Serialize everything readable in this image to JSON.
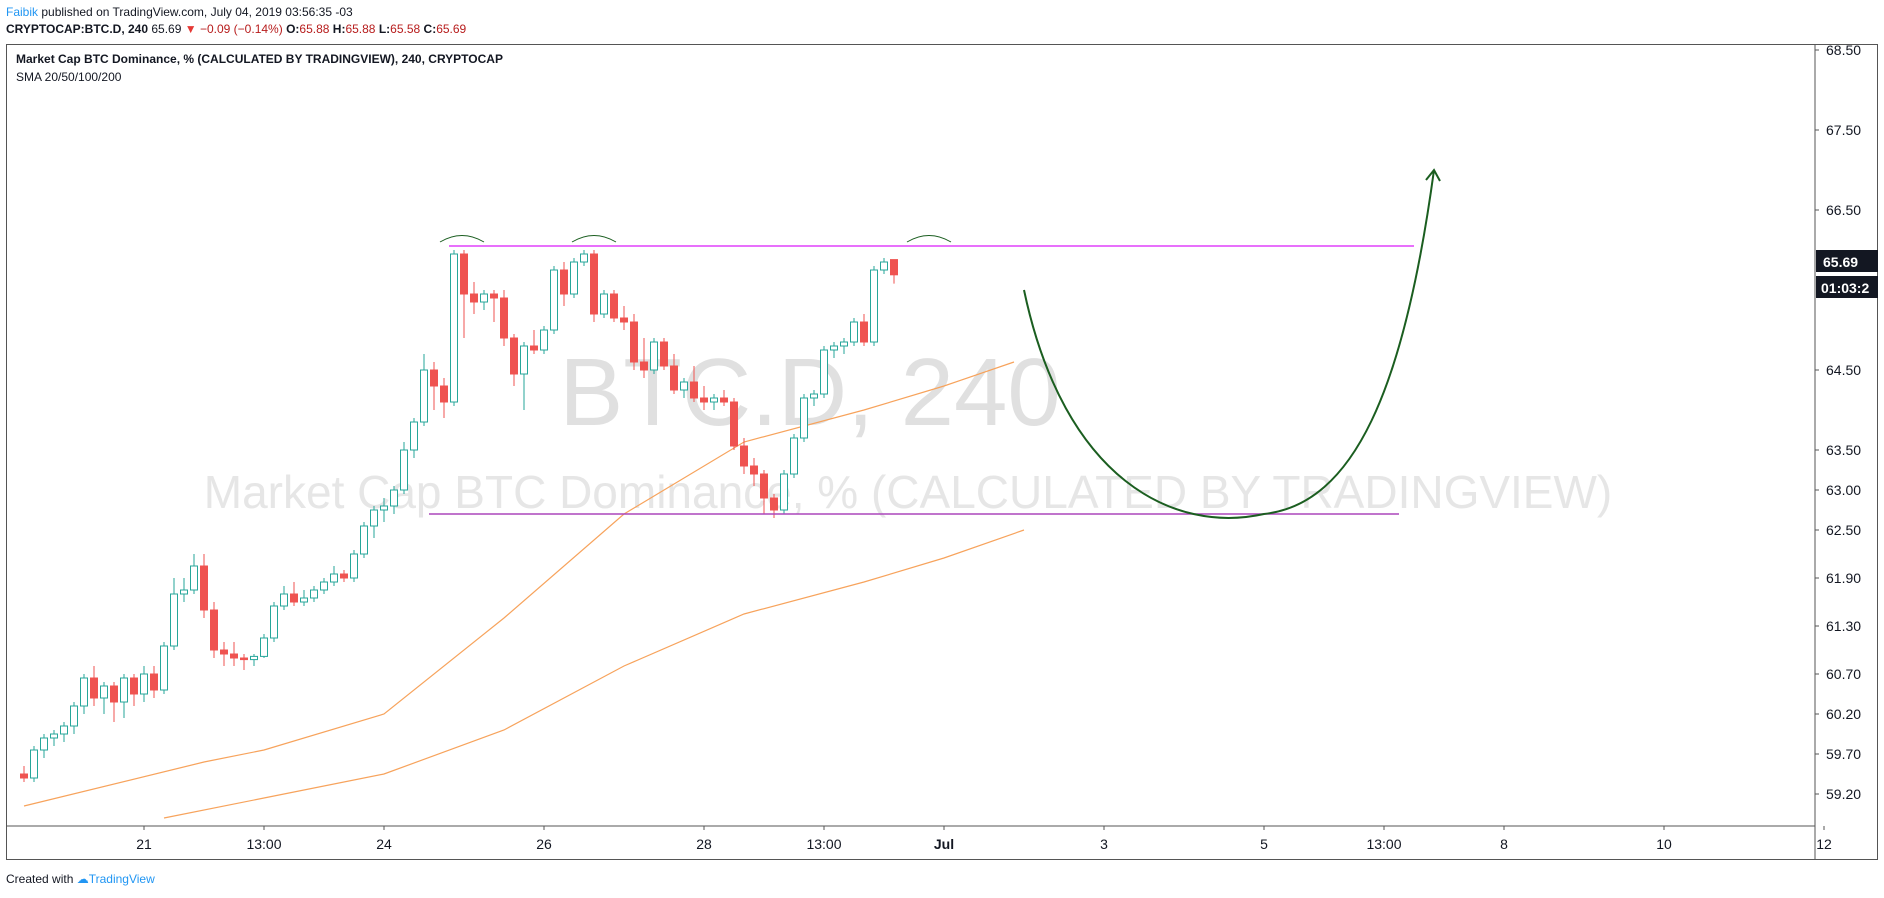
{
  "header": {
    "author": "Faibik",
    "published": "published on TradingView.com, July 04, 2019 03:56:35 -03",
    "symbol": "CRYPTOCAP:BTC.D, 240",
    "last": "65.69",
    "change": "−0.09 (−0.14%)",
    "o_label": "O:",
    "o": "65.88",
    "h_label": "H:",
    "h": "65.88",
    "l_label": "L:",
    "l": "65.58",
    "c_label": "C:",
    "c": "65.69"
  },
  "chart_title": "Market Cap BTC Dominance, % (CALCULATED BY TRADINGVIEW), 240, CRYPTOCAP",
  "indicator": "SMA 20/50/100/200",
  "watermark": {
    "symbol": "BTC.D, 240",
    "name": "Market Cap BTC Dominance, % (CALCULATED BY TRADINGVIEW)"
  },
  "price_badge": "65.69",
  "countdown_badge": "01:03:2",
  "footer": {
    "created": "Created with",
    "brand": "TradingView"
  },
  "colors": {
    "up": "#26a69a",
    "down": "#ef5350",
    "sma": "#f7a35c",
    "resistance": "#e040fb",
    "support": "#ab47bc",
    "projection": "#1b5e20"
  },
  "chart_data": {
    "type": "candlestick",
    "y_axis": {
      "ticks": [
        68.5,
        67.5,
        66.5,
        65.69,
        64.5,
        63.5,
        63.0,
        62.5,
        61.9,
        61.3,
        60.7,
        60.2,
        59.7,
        59.2
      ]
    },
    "x_axis": {
      "ticks": [
        "21",
        "13:00",
        "24",
        "26",
        "28",
        "13:00",
        "Jul",
        "3",
        "5",
        "13:00",
        "8",
        "10",
        "12"
      ],
      "tick_index": [
        12,
        24,
        36,
        52,
        68,
        80,
        92,
        108,
        124,
        136,
        148,
        164,
        180
      ]
    },
    "candles": [
      [
        59.45,
        59.55,
        59.35,
        59.4
      ],
      [
        59.4,
        59.8,
        59.35,
        59.75
      ],
      [
        59.75,
        59.95,
        59.65,
        59.9
      ],
      [
        59.9,
        60.0,
        59.8,
        59.95
      ],
      [
        59.95,
        60.1,
        59.85,
        60.05
      ],
      [
        60.05,
        60.35,
        59.95,
        60.3
      ],
      [
        60.3,
        60.7,
        60.2,
        60.65
      ],
      [
        60.65,
        60.8,
        60.3,
        60.4
      ],
      [
        60.4,
        60.6,
        60.2,
        60.55
      ],
      [
        60.55,
        60.6,
        60.1,
        60.35
      ],
      [
        60.35,
        60.7,
        60.15,
        60.65
      ],
      [
        60.65,
        60.7,
        60.3,
        60.45
      ],
      [
        60.45,
        60.8,
        60.35,
        60.7
      ],
      [
        60.7,
        60.8,
        60.4,
        60.5
      ],
      [
        60.5,
        61.1,
        60.45,
        61.05
      ],
      [
        61.05,
        61.9,
        61.0,
        61.7
      ],
      [
        61.7,
        61.9,
        61.6,
        61.75
      ],
      [
        61.75,
        62.2,
        61.7,
        62.05
      ],
      [
        62.05,
        62.2,
        61.4,
        61.5
      ],
      [
        61.5,
        61.6,
        60.9,
        61.0
      ],
      [
        61.0,
        61.1,
        60.8,
        60.95
      ],
      [
        60.95,
        61.1,
        60.8,
        60.9
      ],
      [
        60.9,
        60.95,
        60.75,
        60.88
      ],
      [
        60.88,
        60.95,
        60.8,
        60.92
      ],
      [
        60.92,
        61.2,
        60.9,
        61.15
      ],
      [
        61.15,
        61.6,
        61.1,
        61.55
      ],
      [
        61.55,
        61.8,
        61.5,
        61.7
      ],
      [
        61.7,
        61.85,
        61.55,
        61.6
      ],
      [
        61.6,
        61.75,
        61.55,
        61.65
      ],
      [
        61.65,
        61.8,
        61.6,
        61.75
      ],
      [
        61.75,
        61.9,
        61.7,
        61.85
      ],
      [
        61.85,
        62.05,
        61.8,
        61.95
      ],
      [
        61.95,
        62.0,
        61.85,
        61.9
      ],
      [
        61.9,
        62.25,
        61.85,
        62.2
      ],
      [
        62.2,
        62.6,
        62.15,
        62.55
      ],
      [
        62.55,
        62.8,
        62.4,
        62.75
      ],
      [
        62.75,
        62.9,
        62.6,
        62.8
      ],
      [
        62.8,
        63.05,
        62.7,
        63.0
      ],
      [
        63.0,
        63.6,
        62.95,
        63.5
      ],
      [
        63.5,
        63.9,
        63.4,
        63.85
      ],
      [
        63.85,
        64.7,
        63.8,
        64.5
      ],
      [
        64.5,
        64.6,
        64.0,
        64.3
      ],
      [
        64.3,
        64.4,
        63.9,
        64.1
      ],
      [
        64.1,
        66.0,
        64.05,
        65.95
      ],
      [
        65.95,
        66.0,
        64.9,
        65.45
      ],
      [
        65.45,
        65.6,
        65.2,
        65.35
      ],
      [
        65.35,
        65.5,
        65.25,
        65.45
      ],
      [
        65.45,
        65.5,
        65.1,
        65.4
      ],
      [
        65.4,
        65.5,
        64.8,
        64.9
      ],
      [
        64.9,
        64.95,
        64.3,
        64.45
      ],
      [
        64.45,
        64.85,
        64.0,
        64.8
      ],
      [
        64.8,
        65.0,
        64.7,
        64.75
      ],
      [
        64.75,
        65.05,
        64.7,
        65.0
      ],
      [
        65.0,
        65.8,
        64.95,
        65.75
      ],
      [
        65.75,
        65.85,
        65.3,
        65.45
      ],
      [
        65.45,
        65.9,
        65.4,
        65.85
      ],
      [
        65.85,
        66.0,
        65.8,
        65.95
      ],
      [
        65.95,
        66.0,
        65.1,
        65.2
      ],
      [
        65.2,
        65.5,
        65.15,
        65.45
      ],
      [
        65.45,
        65.5,
        65.1,
        65.15
      ],
      [
        65.15,
        65.3,
        65.0,
        65.1
      ],
      [
        65.1,
        65.2,
        64.5,
        64.6
      ],
      [
        64.6,
        64.9,
        64.4,
        64.5
      ],
      [
        64.5,
        64.9,
        64.45,
        64.85
      ],
      [
        64.85,
        64.9,
        64.5,
        64.55
      ],
      [
        64.55,
        64.7,
        64.2,
        64.25
      ],
      [
        64.25,
        64.4,
        64.15,
        64.35
      ],
      [
        64.35,
        64.55,
        64.1,
        64.15
      ],
      [
        64.15,
        64.3,
        64.0,
        64.1
      ],
      [
        64.1,
        64.2,
        64.0,
        64.15
      ],
      [
        64.15,
        64.25,
        64.05,
        64.1
      ],
      [
        64.1,
        64.15,
        63.5,
        63.55
      ],
      [
        63.55,
        63.65,
        63.2,
        63.3
      ],
      [
        63.3,
        63.4,
        63.05,
        63.2
      ],
      [
        63.2,
        63.25,
        62.7,
        62.9
      ],
      [
        62.9,
        62.95,
        62.65,
        62.75
      ],
      [
        62.75,
        63.25,
        62.7,
        63.2
      ],
      [
        63.2,
        63.7,
        63.15,
        63.65
      ],
      [
        63.65,
        64.2,
        63.6,
        64.15
      ],
      [
        64.15,
        64.25,
        64.05,
        64.2
      ],
      [
        64.2,
        64.8,
        64.15,
        64.75
      ],
      [
        64.75,
        64.85,
        64.65,
        64.8
      ],
      [
        64.8,
        64.9,
        64.7,
        64.85
      ],
      [
        64.85,
        65.15,
        64.8,
        65.1
      ],
      [
        65.1,
        65.2,
        64.8,
        64.85
      ],
      [
        64.85,
        65.8,
        64.8,
        65.75
      ],
      [
        65.75,
        65.9,
        65.7,
        65.85
      ],
      [
        65.88,
        65.88,
        65.58,
        65.69
      ]
    ],
    "sma_fast": [
      [
        0,
        59.05
      ],
      [
        18,
        59.6
      ],
      [
        24,
        59.75
      ],
      [
        36,
        60.2
      ],
      [
        48,
        61.4
      ],
      [
        60,
        62.7
      ],
      [
        72,
        63.6
      ],
      [
        84,
        64.0
      ],
      [
        92,
        64.3
      ],
      [
        99,
        64.6
      ]
    ],
    "sma_slow": [
      [
        14,
        58.9
      ],
      [
        24,
        59.15
      ],
      [
        36,
        59.45
      ],
      [
        48,
        60.0
      ],
      [
        60,
        60.8
      ],
      [
        72,
        61.45
      ],
      [
        84,
        61.85
      ],
      [
        92,
        62.15
      ],
      [
        100,
        62.5
      ]
    ],
    "resistance": {
      "price": 66.05,
      "from_index": 42.5,
      "to_index": 139
    },
    "support": {
      "price": 62.7,
      "from_index": 40.5,
      "to_index": 137.5
    },
    "projection": {
      "from": [
        100,
        65.5
      ],
      "bottom": [
        124,
        62.7
      ],
      "to": [
        141,
        67.0
      ]
    }
  }
}
